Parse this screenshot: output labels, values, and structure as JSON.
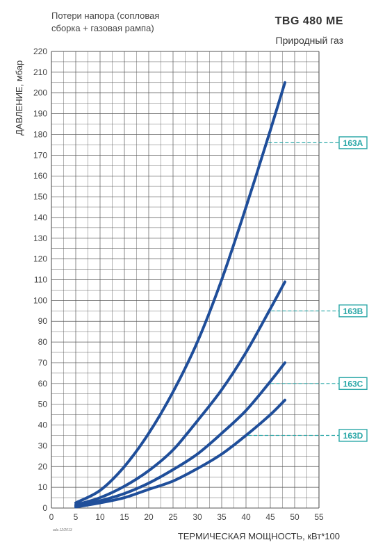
{
  "header": {
    "subtitle_line1": "Потери напора (сопловая",
    "subtitle_line2": "сборка + газовая рампа)",
    "model": "TBG 480 ME",
    "gas": "Природный газ"
  },
  "footer": {
    "stamp": "adz.12/2013"
  },
  "colors": {
    "curve": "#1f4e9a",
    "label": "#2aa7a7",
    "grid": "#555555"
  },
  "chart_data": {
    "type": "line",
    "xlabel": "ТЕРМИЧЕСКАЯ МОЩНОСТЬ, кВт*100",
    "ylabel": "ДАВЛЕНИЕ, мбар",
    "xlim": [
      0,
      55
    ],
    "ylim": [
      0,
      220
    ],
    "x_ticks": [
      0,
      5,
      10,
      15,
      20,
      25,
      30,
      35,
      40,
      45,
      50,
      55
    ],
    "y_ticks": [
      0,
      10,
      20,
      30,
      40,
      50,
      60,
      70,
      80,
      90,
      100,
      110,
      120,
      130,
      140,
      150,
      160,
      170,
      180,
      190,
      200,
      210,
      220
    ],
    "grid": true,
    "series": [
      {
        "name": "163A",
        "x": [
          5,
          10,
          15,
          20,
          25,
          30,
          35,
          40,
          45,
          48
        ],
        "y": [
          2.5,
          8.5,
          20,
          36,
          56,
          80,
          110,
          145,
          182,
          205
        ],
        "label_y": 176
      },
      {
        "name": "163B",
        "x": [
          5,
          10,
          15,
          20,
          25,
          30,
          35,
          40,
          45,
          48
        ],
        "y": [
          1.5,
          5,
          10.5,
          18,
          28,
          42,
          57,
          75,
          96,
          109
        ],
        "label_y": 95
      },
      {
        "name": "163C",
        "x": [
          5,
          10,
          15,
          20,
          25,
          30,
          35,
          40,
          45,
          48
        ],
        "y": [
          1,
          3.5,
          7,
          12,
          18.5,
          26,
          36,
          47,
          61,
          70
        ],
        "label_y": 60
      },
      {
        "name": "163D",
        "x": [
          5,
          10,
          15,
          20,
          25,
          30,
          35,
          40,
          45,
          48
        ],
        "y": [
          0.5,
          2.5,
          5,
          9,
          13,
          19,
          26,
          35,
          45,
          52
        ],
        "label_y": 35
      }
    ]
  }
}
